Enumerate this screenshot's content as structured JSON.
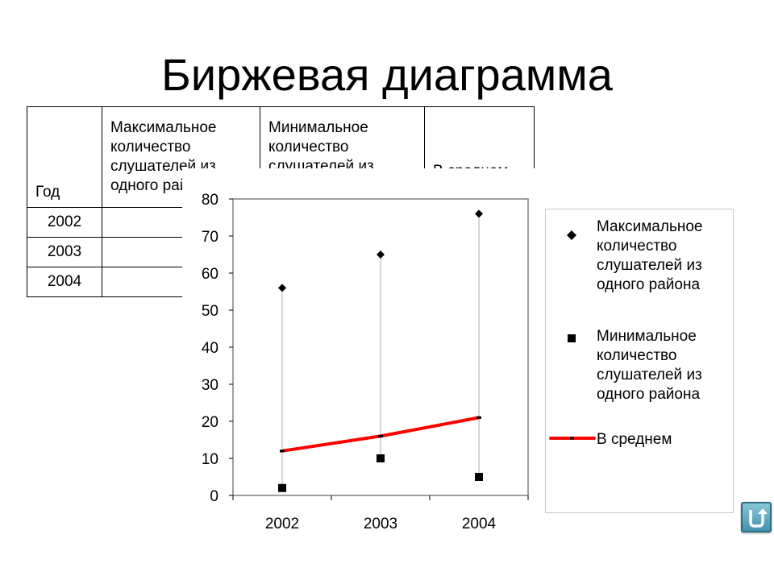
{
  "title": "Биржевая диаграмма",
  "table": {
    "headers": [
      "Год",
      "Максимальное количество слушателей из одного района",
      "Минимальное количество слушателей из одного района",
      "В среднем"
    ],
    "years": [
      "2002",
      "2003",
      "2004"
    ]
  },
  "chart_data": {
    "type": "stock",
    "categories": [
      "2002",
      "2003",
      "2004"
    ],
    "ylim": [
      0,
      80
    ],
    "yticks": [
      "0",
      "10",
      "20",
      "30",
      "40",
      "50",
      "60",
      "70",
      "80"
    ],
    "grid": false,
    "legend_position": "right",
    "series": [
      {
        "name": "Максимальное количество слушателей из одного района",
        "marker": "diamond",
        "values": [
          56,
          65,
          76
        ]
      },
      {
        "name": "Минимальное количество слушателей из одного района",
        "marker": "square",
        "values": [
          2,
          10,
          5
        ]
      },
      {
        "name": "В среднем",
        "marker": "line",
        "values": [
          12,
          16,
          21
        ]
      }
    ],
    "colors": {
      "average_line": "#ff0000",
      "markers": "#000000",
      "hi_lo_lines": "#b0b0b0",
      "plot_border": "#808080"
    }
  },
  "nav": {
    "home_icon": "return-arrow-icon"
  }
}
